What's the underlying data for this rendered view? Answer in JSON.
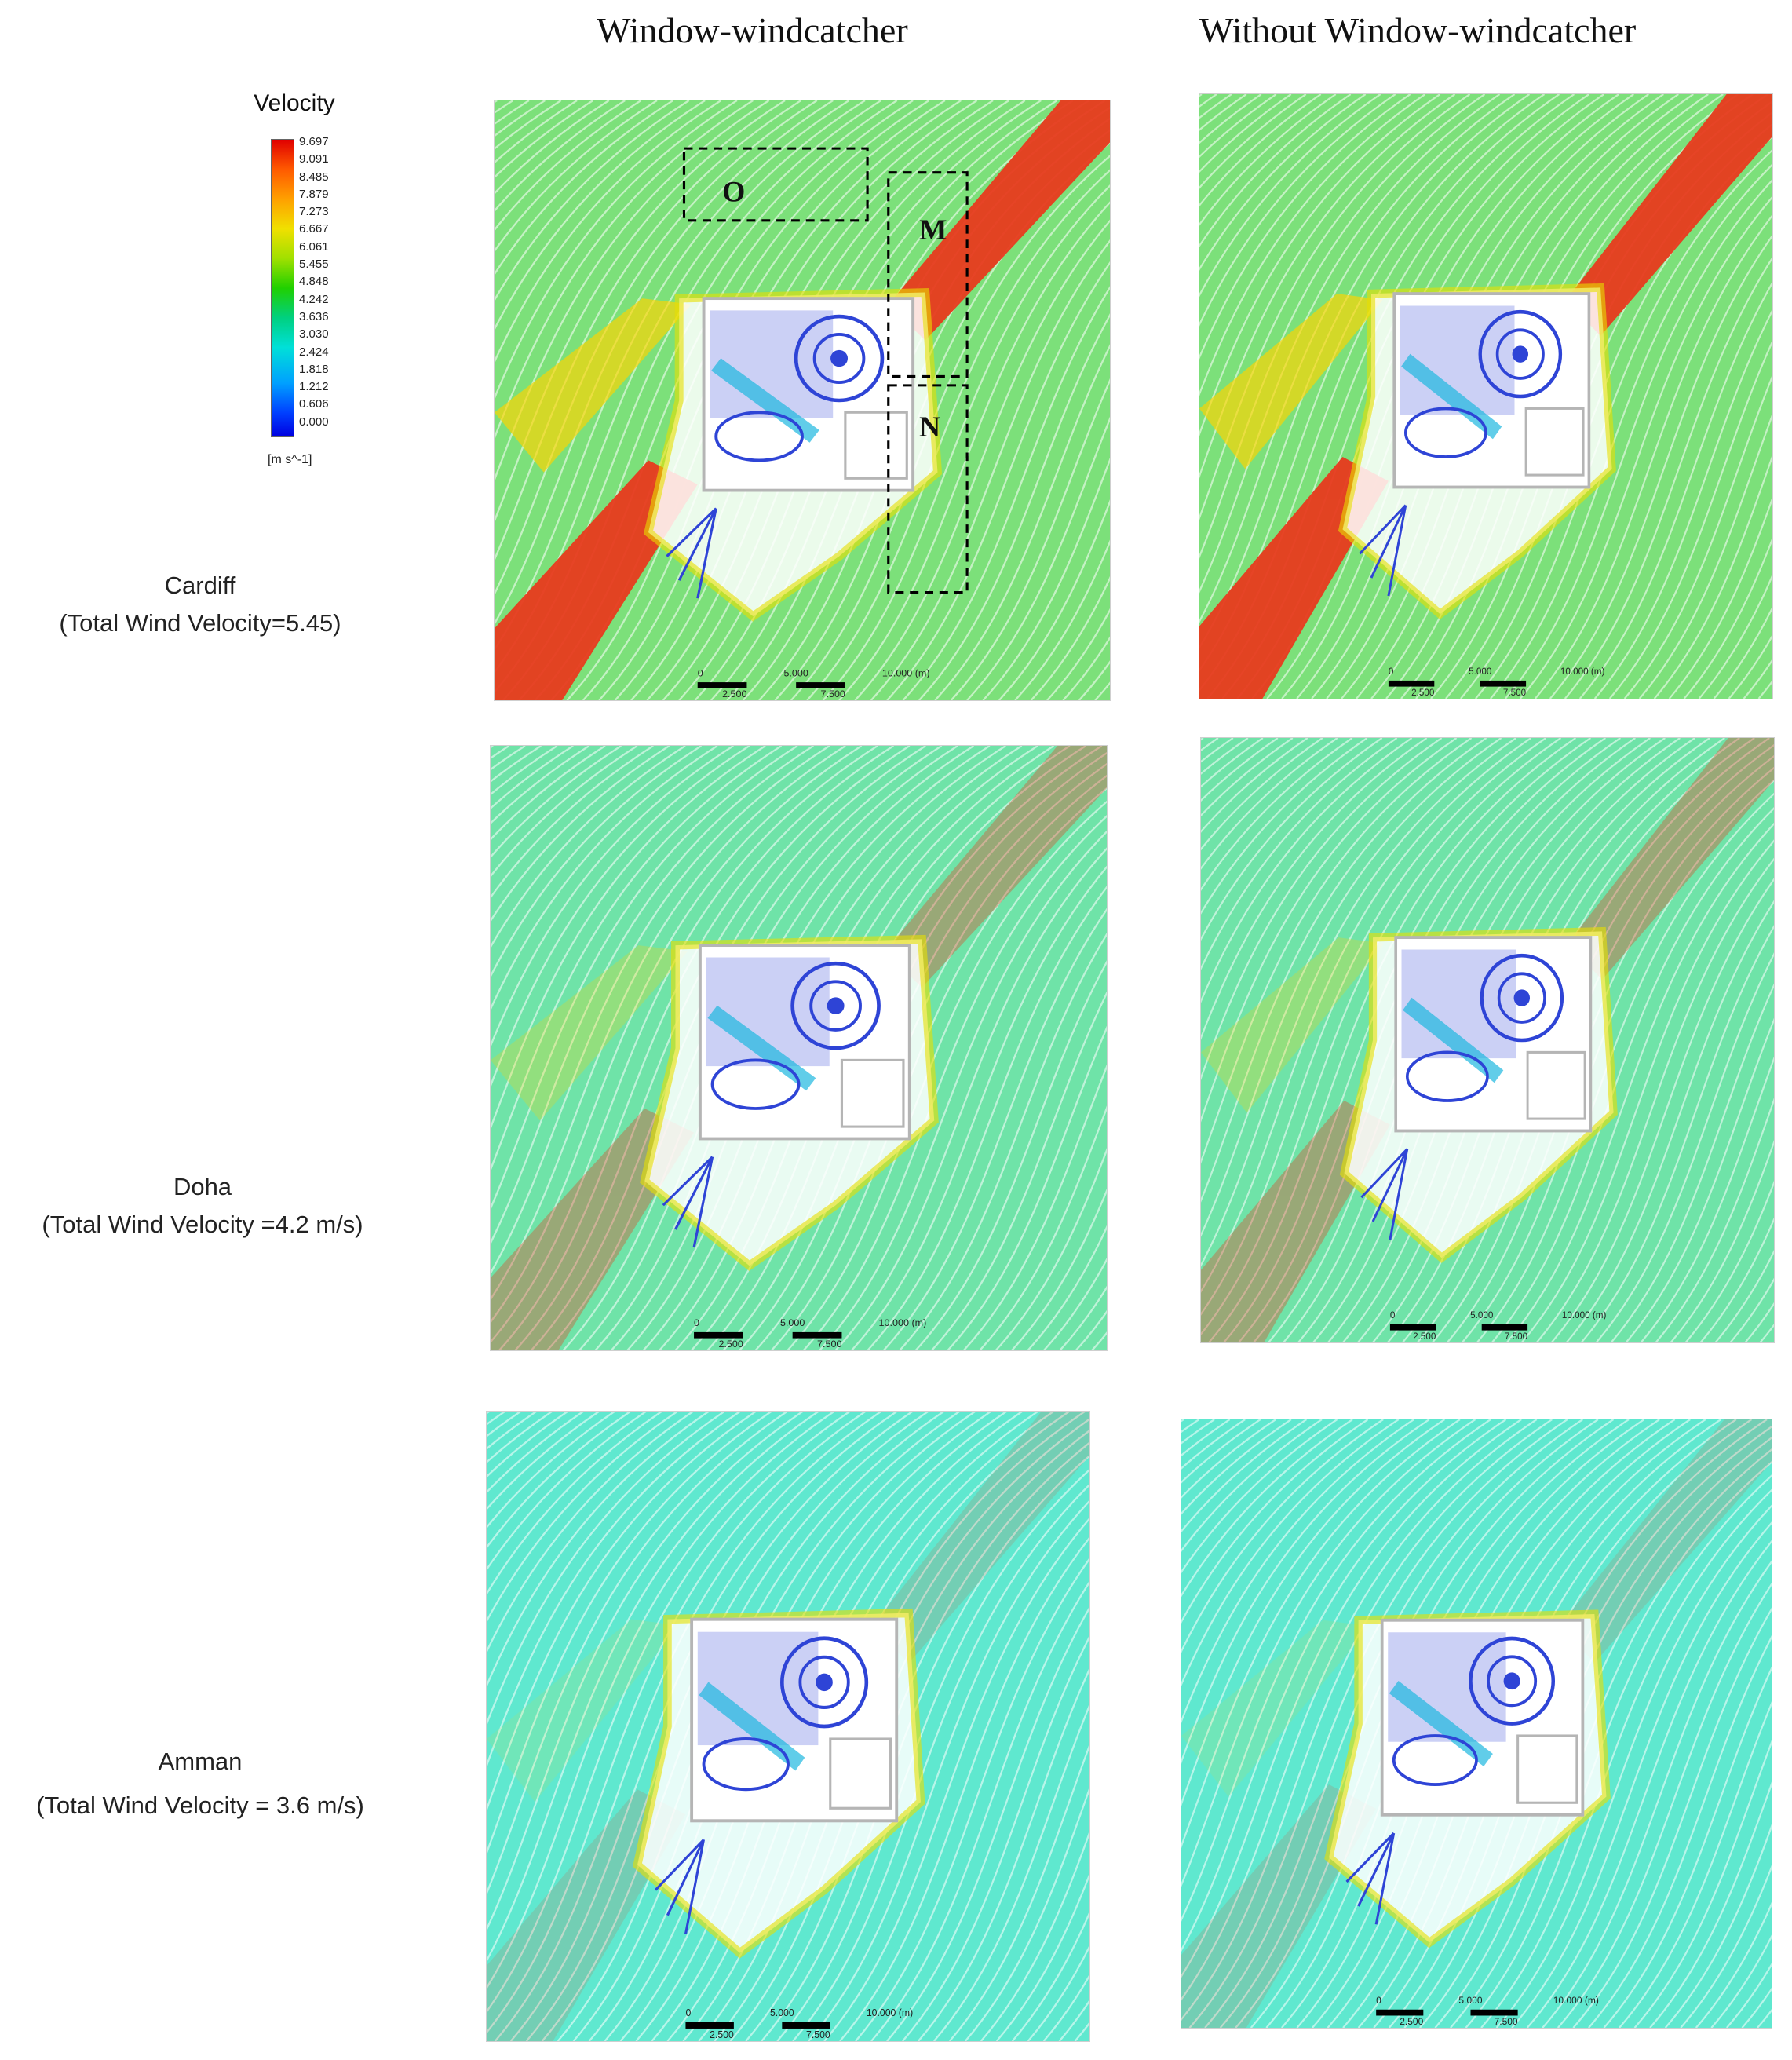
{
  "columns": {
    "with": "Window-windcatcher",
    "without": "Without Window-windcatcher"
  },
  "legend": {
    "title": "Velocity",
    "ticks": [
      "9.697",
      "9.091",
      "8.485",
      "7.879",
      "7.273",
      "6.667",
      "6.061",
      "5.455",
      "4.848",
      "4.242",
      "3.636",
      "3.030",
      "2.424",
      "1.818",
      "1.212",
      "0.606",
      "0.000"
    ],
    "unit": "[m s^-1]"
  },
  "rows": [
    {
      "city": "Cardiff",
      "velocity": "(Total Wind Velocity=5.45)"
    },
    {
      "city": "Doha",
      "velocity": "(Total Wind Velocity =4.2 m/s)"
    },
    {
      "city": "Amman",
      "velocity": "(Total Wind Velocity = 3.6 m/s)"
    }
  ],
  "zones": {
    "o": "O",
    "m": "M",
    "n": "N"
  },
  "scale_bar": {
    "t0": "0",
    "t1": "5.000",
    "t2": "10.000 (m)",
    "s1": "2.500",
    "s2": "7.500"
  },
  "colors": {
    "free_stream_cardiff": "#7ce07a",
    "free_stream_doha": "#6fe3a8",
    "free_stream_amman": "#5fe8cf",
    "jet_high": "#e83a1e",
    "interior_low": "#2e44d6",
    "building_outline": "#b5b5b5"
  }
}
